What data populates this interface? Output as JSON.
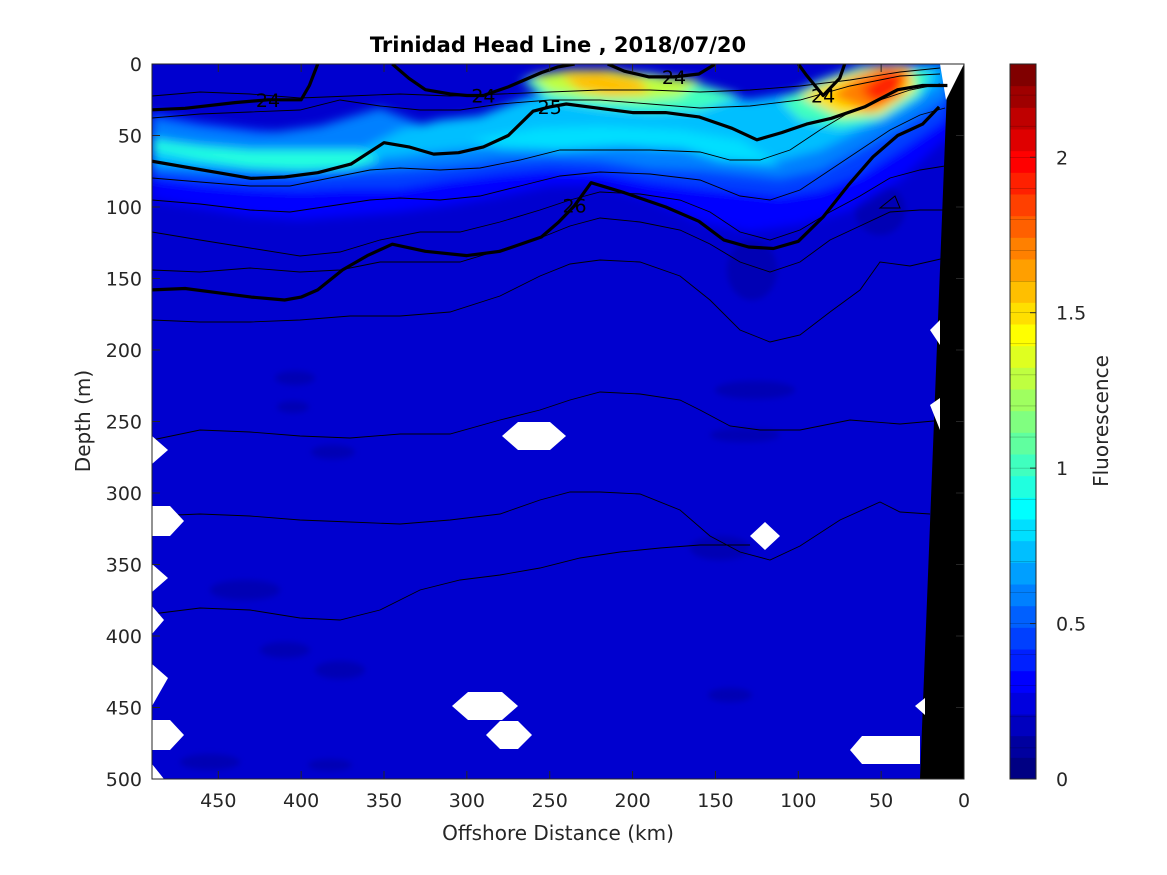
{
  "chart_data": {
    "type": "heatmap",
    "title": "Trinidad Head Line , 2018/07/20",
    "xlabel": "Offshore Distance (km)",
    "ylabel": "Depth (m)",
    "xlim": [
      490,
      0
    ],
    "ylim": [
      0,
      500
    ],
    "x_reversed": true,
    "y_reversed": true,
    "x_ticks": [
      450,
      400,
      350,
      300,
      250,
      200,
      150,
      100,
      50,
      0
    ],
    "y_ticks": [
      0,
      50,
      100,
      150,
      200,
      250,
      300,
      350,
      400,
      450,
      500
    ],
    "colorbar": {
      "label": "Fluorescence",
      "limits": [
        0,
        2.3
      ],
      "ticks": [
        0,
        0.5,
        1,
        1.5,
        2
      ],
      "tick_labels": [
        "0",
        "0.5",
        "1",
        "1.5",
        "2"
      ],
      "levels": 23,
      "colormap": "jet",
      "colors": [
        "#000083",
        "#00009f",
        "#0000bf",
        "#0000df",
        "#0000ff",
        "#0020ff",
        "#0040ff",
        "#0060ff",
        "#0080ff",
        "#009fff",
        "#00bfff",
        "#00dfff",
        "#00ffff",
        "#20ffdf",
        "#40ffbf",
        "#60ff9f",
        "#80ff80",
        "#9fff60",
        "#bfff40",
        "#dfff20",
        "#ffff00",
        "#ffdf00",
        "#ffbf00",
        "#ff9f00",
        "#ff8000",
        "#ff6000",
        "#ff4000",
        "#ff2000",
        "#ff0000",
        "#df0000",
        "#bf0000",
        "#9f0000",
        "#800000"
      ]
    },
    "series": [
      {
        "name": "24",
        "x": [
          490,
          470,
          440,
          420,
          400,
          395,
          390
        ],
        "y": [
          32,
          31,
          27,
          25,
          25,
          15,
          0
        ]
      },
      {
        "name": "24",
        "x": [
          345,
          335,
          325,
          310,
          300,
          290,
          275,
          255,
          245,
          235
        ],
        "y": [
          0,
          10,
          18,
          21,
          22,
          22,
          16,
          6,
          2,
          0
        ]
      },
      {
        "name": "24",
        "x": [
          215,
          205,
          190,
          175,
          160,
          150
        ],
        "y": [
          0,
          5,
          9,
          9,
          7,
          0
        ]
      },
      {
        "name": "24",
        "x": [
          100,
          95,
          85,
          75,
          72
        ],
        "y": [
          0,
          8,
          22,
          10,
          0
        ]
      },
      {
        "name": "25",
        "x": [
          490,
          470,
          450,
          430,
          410,
          390,
          370,
          350,
          335,
          320,
          305,
          290,
          275,
          260,
          250,
          240,
          220,
          200,
          180,
          160,
          140,
          125,
          110,
          95,
          80,
          60,
          40,
          25,
          10
        ],
        "y": [
          68,
          72,
          76,
          80,
          79,
          76,
          70,
          55,
          58,
          63,
          62,
          58,
          50,
          33,
          30,
          28,
          31,
          34,
          34,
          37,
          45,
          53,
          48,
          42,
          38,
          30,
          18,
          15,
          15
        ]
      },
      {
        "name": "26",
        "x": [
          490,
          470,
          450,
          430,
          410,
          400,
          390,
          375,
          360,
          345,
          325,
          300,
          280,
          255,
          245,
          235,
          225,
          205,
          180,
          160,
          145,
          130,
          115,
          100,
          85,
          70,
          55,
          40,
          25,
          15
        ],
        "y": [
          158,
          157,
          160,
          163,
          165,
          163,
          158,
          144,
          134,
          126,
          131,
          134,
          131,
          121,
          111,
          99,
          83,
          90,
          100,
          110,
          123,
          128,
          129,
          124,
          107,
          85,
          65,
          50,
          42,
          30
        ]
      }
    ]
  }
}
